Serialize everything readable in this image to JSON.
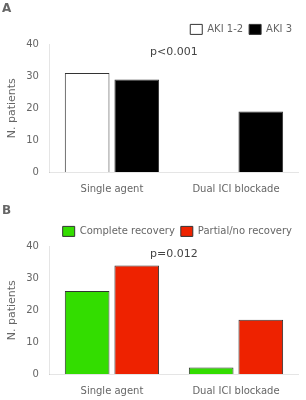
{
  "chart_data": [
    {
      "type": "bar",
      "title": "A",
      "categories": [
        "Single agent",
        "Dual ICI blockade"
      ],
      "series": [
        {
          "name": "AKI 1-2",
          "color": "#ffffff",
          "values": [
            31,
            0
          ]
        },
        {
          "name": "AKI 3",
          "color": "#000000",
          "values": [
            29,
            19
          ]
        }
      ],
      "y_label": "N. patients",
      "ylim": [
        0,
        40
      ],
      "yticks": [
        0,
        10,
        20,
        30,
        40
      ],
      "annotations": [
        {
          "text": "p<0.001",
          "y": 36
        }
      ],
      "legend": "top",
      "grid": false
    },
    {
      "type": "bar",
      "title": "B",
      "categories": [
        "Single agent",
        "Dual ICI blockade"
      ],
      "series": [
        {
          "name": "Complete recovery",
          "color": "#33dd00",
          "values": [
            26,
            2
          ]
        },
        {
          "name": "Partial/no recovery",
          "color": "#ee2200",
          "values": [
            34,
            17
          ]
        }
      ],
      "y_label": "N. patients",
      "ylim": [
        0,
        40
      ],
      "yticks": [
        0,
        10,
        20,
        30,
        40
      ],
      "annotations": [
        {
          "text": "p=0.012",
          "y": 36
        }
      ],
      "legend": "top",
      "grid": false
    }
  ]
}
